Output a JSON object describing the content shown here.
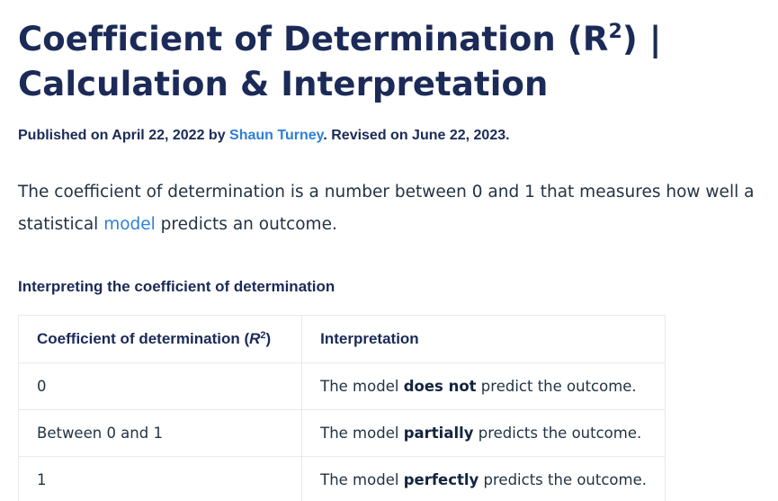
{
  "article": {
    "title_line1": "Coefficient of Determination (R",
    "title_sup": "2",
    "title_line1_end": ") |",
    "title_line2": "Calculation & Interpretation"
  },
  "byline": {
    "published_prefix": "Published on April 22, 2022 by ",
    "author": "Shaun Turney",
    "revised": ". Revised on June 22, 2023."
  },
  "intro": {
    "line1": "The coefficient of determination is a number between 0 and 1 that measures how well a",
    "line2_before": "statistical ",
    "link": "model",
    "line2_after": " predicts an outcome."
  },
  "table": {
    "caption": "Interpreting the coefficient of determination",
    "header_col1": "Coefficient of determination (",
    "header_col1_r": "R",
    "header_col1_sup": "2",
    "header_col1_end": ")",
    "header_col2": "Interpretation",
    "rows": [
      {
        "value": "0",
        "pre": "The model ",
        "bold": "does not",
        "post": " predict the outcome."
      },
      {
        "value": "Between 0 and 1",
        "pre": "The model ",
        "bold": "partially",
        "post": " predicts the outcome."
      },
      {
        "value": "1",
        "pre": "The model ",
        "bold": "perfectly",
        "post": " predicts the outcome."
      }
    ]
  }
}
